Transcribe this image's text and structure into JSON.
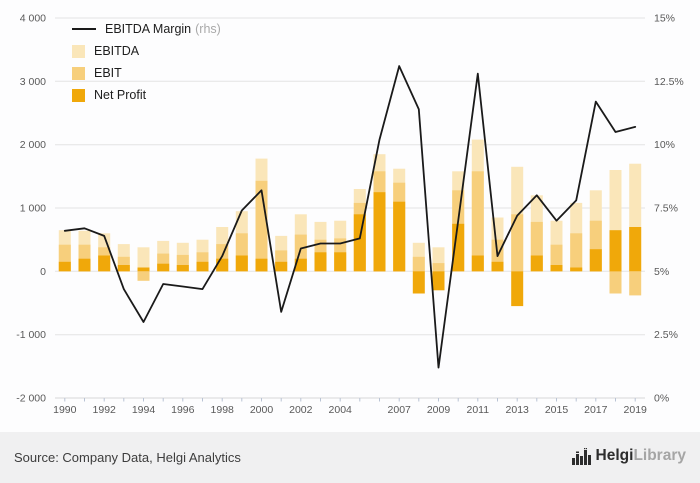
{
  "legend": {
    "margin_label": "EBITDA Margin",
    "margin_rhs": "(rhs)",
    "items": [
      "EBITDA",
      "EBIT",
      "Net Profit"
    ]
  },
  "chart_data": {
    "type": "bar",
    "title": "",
    "xlabel": "",
    "ylabel_left": "",
    "ylabel_right": "",
    "grid": true,
    "legend_position": "top-left",
    "x": [
      1990,
      1991,
      1992,
      1993,
      1994,
      1995,
      1996,
      1997,
      1998,
      1999,
      2000,
      2001,
      2002,
      2003,
      2004,
      2005,
      2006,
      2007,
      2008,
      2009,
      2010,
      2011,
      2012,
      2013,
      2014,
      2015,
      2016,
      2017,
      2018,
      2019
    ],
    "x_axis_labels": [
      "1990",
      "1992",
      "1994",
      "1996",
      "1998",
      "2000",
      "2002",
      "2004",
      "2007",
      "2009",
      "2011",
      "2013",
      "2015",
      "2017",
      "2019"
    ],
    "left_axis": {
      "min": -2000,
      "max": 4000,
      "tick_step": 1000,
      "tick_labels": [
        "4 000",
        "3 000",
        "2 000",
        "1 000",
        "0",
        "-1 000",
        "-2 000"
      ]
    },
    "right_axis": {
      "min": 0,
      "max": 15,
      "tick_labels": [
        "15%",
        "12.5%",
        "10%",
        "7.5%",
        "5%",
        "2.5%",
        "0%"
      ]
    },
    "series": [
      {
        "name": "EBITDA",
        "type": "bar",
        "color": "#FAE6B9",
        "values": [
          650,
          640,
          600,
          430,
          380,
          480,
          450,
          500,
          700,
          950,
          1780,
          560,
          900,
          780,
          800,
          1300,
          1850,
          1620,
          450,
          380,
          1580,
          2080,
          850,
          1650,
          1200,
          800,
          1080,
          1280,
          1600,
          1700
        ]
      },
      {
        "name": "EBIT",
        "type": "bar",
        "color": "#F7CF7C",
        "values": [
          420,
          420,
          380,
          230,
          -150,
          280,
          260,
          300,
          430,
          600,
          1430,
          330,
          580,
          500,
          520,
          1080,
          1580,
          1400,
          230,
          130,
          1280,
          1580,
          500,
          900,
          780,
          420,
          600,
          800,
          -350,
          -380
        ]
      },
      {
        "name": "Net Profit",
        "type": "bar",
        "color": "#F0A80A",
        "values": [
          150,
          200,
          250,
          100,
          60,
          120,
          100,
          150,
          200,
          250,
          200,
          150,
          200,
          300,
          300,
          900,
          1250,
          1100,
          -350,
          -300,
          750,
          250,
          150,
          -550,
          250,
          100,
          60,
          350,
          650,
          700
        ]
      },
      {
        "name": "EBITDA Margin (rhs)",
        "type": "line",
        "axis": "right",
        "color": "#1a1a1a",
        "values": [
          6.6,
          6.7,
          6.4,
          4.3,
          3.0,
          4.5,
          4.4,
          4.3,
          5.6,
          7.4,
          8.2,
          3.4,
          5.9,
          6.1,
          6.1,
          6.3,
          10.2,
          13.1,
          11.4,
          1.2,
          7.0,
          12.8,
          5.6,
          7.2,
          8.0,
          7.0,
          7.8,
          11.7,
          10.5,
          10.7
        ]
      }
    ]
  },
  "footer": {
    "source": "Source: Company Data, Helgi Analytics",
    "logo": {
      "icon": "castle-bars-icon",
      "primary": "Helgi",
      "secondary": "Library"
    }
  }
}
